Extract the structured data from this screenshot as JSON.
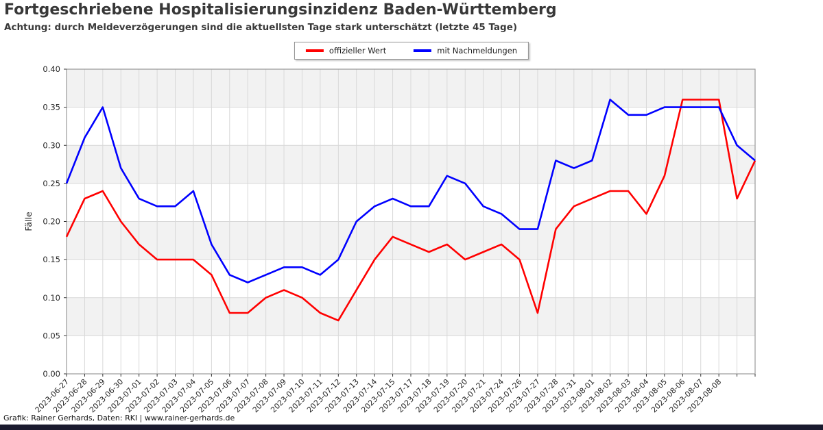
{
  "header": {
    "title": "Fortgeschriebene Hospitalisierungsinzidenz Baden-Württemberg",
    "subtitle": "Achtung: durch Meldeverzögerungen sind die aktuellsten Tage stark unterschätzt (letzte 45 Tage)"
  },
  "footer": {
    "credit": "Grafik: Rainer Gerhards, Daten: RKI | www.rainer-gerhards.de"
  },
  "colors": {
    "band": "#f2f2f2",
    "grid": "#d8d8d8",
    "spine": "#999999",
    "tick": "#333333",
    "tick_text": "#262626",
    "footer_bar": "#1a1a2e"
  },
  "chart_data": {
    "type": "line",
    "title": "Fortgeschriebene Hospitalisierungsinzidenz Baden-Württemberg",
    "ylabel": "Fälle",
    "xlabel": "",
    "ylim": [
      0.0,
      0.4
    ],
    "ytick_step": 0.05,
    "grid": true,
    "legend_position": "top-center",
    "categories": [
      "2023-06-27",
      "2023-06-28",
      "2023-06-29",
      "2023-06-30",
      "2023-07-01",
      "2023-07-02",
      "2023-07-03",
      "2023-07-04",
      "2023-07-05",
      "2023-07-06",
      "2023-07-07",
      "2023-07-08",
      "2023-07-09",
      "2023-07-10",
      "2023-07-11",
      "2023-07-12",
      "2023-07-13",
      "2023-07-14",
      "2023-07-15",
      "2023-07-17",
      "2023-07-18",
      "2023-07-19",
      "2023-07-20",
      "2023-07-21",
      "2023-07-24",
      "2023-07-26",
      "2023-07-27",
      "2023-07-28",
      "2023-07-31",
      "2023-08-01",
      "2023-08-02",
      "2023-08-03",
      "2023-08-04",
      "2023-08-05",
      "2023-08-06",
      "2023-08-07",
      "2023-08-08",
      "",
      ""
    ],
    "series": [
      {
        "name": "offizieller Wert",
        "color": "#ff0000",
        "values": [
          0.18,
          0.23,
          0.24,
          0.2,
          0.17,
          0.15,
          0.15,
          0.15,
          0.13,
          0.08,
          0.08,
          0.1,
          0.11,
          0.1,
          0.08,
          0.07,
          0.11,
          0.15,
          0.18,
          0.17,
          0.16,
          0.17,
          0.15,
          0.16,
          0.17,
          0.15,
          0.08,
          0.19,
          0.22,
          0.23,
          0.24,
          0.24,
          0.21,
          0.26,
          0.36,
          0.36,
          0.36,
          0.23,
          0.28
        ]
      },
      {
        "name": "mit Nachmeldungen",
        "color": "#0000ff",
        "values": [
          0.25,
          0.31,
          0.35,
          0.27,
          0.23,
          0.22,
          0.22,
          0.24,
          0.17,
          0.13,
          0.12,
          0.13,
          0.14,
          0.14,
          0.13,
          0.15,
          0.2,
          0.22,
          0.23,
          0.22,
          0.22,
          0.26,
          0.25,
          0.22,
          0.21,
          0.19,
          0.19,
          0.28,
          0.27,
          0.28,
          0.36,
          0.34,
          0.34,
          0.35,
          0.35,
          0.35,
          0.35,
          0.3,
          0.28
        ]
      }
    ]
  }
}
